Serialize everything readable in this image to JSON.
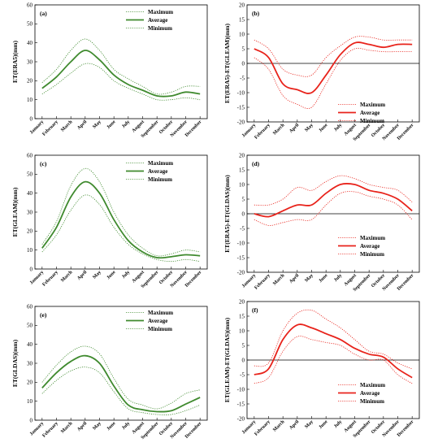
{
  "colors": {
    "green": "#3f8a2e",
    "red": "#e8231b",
    "zero": "#000000",
    "frame": "#000000"
  },
  "chart_data": [
    {
      "type": "line",
      "panel": "(a)",
      "ylabel": "ET(ERA5)(mm)",
      "ylim": [
        0,
        60
      ],
      "yticks": [
        "0",
        "10",
        "20",
        "30",
        "40",
        "50",
        "60"
      ],
      "color": "green",
      "categories": [
        "January",
        "February",
        "March",
        "April",
        "May",
        "June",
        "July",
        "August",
        "September",
        "October",
        "November",
        "December"
      ],
      "legend": [
        "Maximum",
        "Average",
        "Minimum"
      ],
      "series": [
        {
          "name": "Maximum",
          "style": "dotted",
          "values": [
            19,
            26,
            36,
            42,
            36,
            26,
            21,
            17,
            13,
            14,
            17,
            17
          ]
        },
        {
          "name": "Average",
          "style": "solid",
          "values": [
            16,
            22,
            30,
            36,
            31,
            23,
            18,
            15,
            12,
            12,
            14,
            13
          ]
        },
        {
          "name": "Minimum",
          "style": "dotted",
          "values": [
            13,
            18,
            24,
            29,
            27,
            20,
            16,
            13,
            10,
            10,
            11,
            10
          ]
        }
      ]
    },
    {
      "type": "line",
      "panel": "(b)",
      "ylabel": "ET(ERA5)-ET(GLEAM)(mm)",
      "ylim": [
        -20,
        20
      ],
      "zero_line": true,
      "yticks": [
        "-20",
        "-15",
        "-10",
        "-5",
        "0",
        "5",
        "10",
        "15",
        "20"
      ],
      "color": "red",
      "categories": [
        "January",
        "February",
        "March",
        "April",
        "May",
        "June",
        "July",
        "August",
        "September",
        "October",
        "November",
        "December"
      ],
      "legend": [
        "Maximum",
        "Average",
        "Minimum"
      ],
      "series": [
        {
          "name": "Maximum",
          "style": "dotted",
          "values": [
            8,
            5,
            -2,
            -4,
            -4,
            2,
            6,
            9,
            9,
            8,
            8,
            8
          ]
        },
        {
          "name": "Average",
          "style": "solid",
          "values": [
            5,
            2,
            -7,
            -9,
            -10,
            -4,
            3,
            7,
            6.5,
            5.5,
            6.5,
            6.5
          ]
        },
        {
          "name": "Minimum",
          "style": "dotted",
          "values": [
            2,
            -2,
            -11,
            -14,
            -15,
            -7,
            1,
            5,
            4.5,
            4,
            4,
            4
          ]
        }
      ]
    },
    {
      "type": "line",
      "panel": "(c)",
      "ylabel": "ET(GLEAM)(mm)",
      "ylim": [
        0,
        60
      ],
      "yticks": [
        "0",
        "10",
        "20",
        "30",
        "40",
        "50",
        "60"
      ],
      "color": "green",
      "categories": [
        "January",
        "February",
        "March",
        "April",
        "May",
        "June",
        "July",
        "August",
        "September",
        "October",
        "November",
        "December"
      ],
      "legend": [
        "Maximum",
        "Average",
        "Minimum"
      ],
      "series": [
        {
          "name": "Maximum",
          "style": "dotted",
          "values": [
            13,
            25,
            44,
            53,
            46,
            30,
            18,
            11,
            7,
            8,
            10,
            9
          ]
        },
        {
          "name": "Average",
          "style": "solid",
          "values": [
            11,
            22,
            38,
            46,
            40,
            26,
            15,
            9,
            6,
            6.5,
            7.5,
            7
          ]
        },
        {
          "name": "Minimum",
          "style": "dotted",
          "values": [
            9,
            18,
            31,
            39,
            34,
            22,
            13,
            8,
            5,
            4,
            5,
            4
          ]
        }
      ]
    },
    {
      "type": "line",
      "panel": "(d)",
      "ylabel": "ET(ERA5)-ET(GLDAS)(mm)",
      "ylim": [
        -20,
        20
      ],
      "zero_line": true,
      "yticks": [
        "-20",
        "-15",
        "-10",
        "-5",
        "0",
        "5",
        "10",
        "15",
        "20"
      ],
      "color": "red",
      "categories": [
        "January",
        "February",
        "March",
        "April",
        "May",
        "June",
        "July",
        "August",
        "September",
        "October",
        "November",
        "December"
      ],
      "legend": [
        "Maximum",
        "Average",
        "Minimum"
      ],
      "series": [
        {
          "name": "Maximum",
          "style": "dotted",
          "values": [
            3,
            3,
            5,
            9,
            8,
            11,
            13,
            12,
            10,
            9,
            8,
            4
          ]
        },
        {
          "name": "Average",
          "style": "solid",
          "values": [
            0,
            -1,
            1,
            3,
            3,
            7,
            10,
            10,
            8,
            7,
            5,
            1
          ]
        },
        {
          "name": "Minimum",
          "style": "dotted",
          "values": [
            -2,
            -4,
            -3,
            -2,
            -2,
            3,
            7,
            7.5,
            6,
            5,
            3,
            -2
          ]
        }
      ]
    },
    {
      "type": "line",
      "panel": "(e)",
      "ylabel": "ET(GLDAS)(mm)",
      "ylim": [
        0,
        60
      ],
      "yticks": [
        "0",
        "10",
        "20",
        "30",
        "40",
        "50",
        "60"
      ],
      "color": "green",
      "categories": [
        "January",
        "February",
        "March",
        "April",
        "May",
        "June",
        "July",
        "August",
        "September",
        "October",
        "November",
        "December"
      ],
      "legend": [
        "Maximum",
        "Average",
        "Minimum"
      ],
      "series": [
        {
          "name": "Maximum",
          "style": "dotted",
          "values": [
            20,
            29,
            36,
            39,
            35,
            22,
            11,
            8,
            6,
            9,
            14,
            16
          ]
        },
        {
          "name": "Average",
          "style": "solid",
          "values": [
            17,
            25,
            31,
            34,
            30,
            18,
            8,
            5.5,
            4.5,
            5,
            8.5,
            12
          ]
        },
        {
          "name": "Minimum",
          "style": "dotted",
          "values": [
            14,
            21,
            26,
            28,
            25,
            15,
            6,
            4,
            3,
            3,
            5,
            8
          ]
        }
      ]
    },
    {
      "type": "line",
      "panel": "(f)",
      "ylabel": "ET(GLEAM)-ET(GLDAS)(mm)",
      "ylim": [
        -20,
        20
      ],
      "zero_line": true,
      "yticks": [
        "-20",
        "-15",
        "-10",
        "-5",
        "0",
        "5",
        "10",
        "15",
        "20"
      ],
      "color": "red",
      "categories": [
        "January",
        "February",
        "March",
        "April",
        "May",
        "June",
        "July",
        "August",
        "September",
        "October",
        "November",
        "December"
      ],
      "legend": [
        "Maximum",
        "Average",
        "Minimum"
      ],
      "series": [
        {
          "name": "Maximum",
          "style": "dotted",
          "values": [
            -2,
            -1,
            10,
            16,
            17,
            14,
            11,
            7,
            3,
            2,
            -1,
            -3
          ]
        },
        {
          "name": "Average",
          "style": "solid",
          "values": [
            -5,
            -3,
            7,
            12,
            11,
            9,
            7,
            4,
            2,
            1,
            -3,
            -6
          ]
        },
        {
          "name": "Minimum",
          "style": "dotted",
          "values": [
            -8,
            -6,
            3,
            8,
            7,
            6,
            5,
            2,
            0,
            0,
            -5,
            -8
          ]
        }
      ]
    }
  ]
}
